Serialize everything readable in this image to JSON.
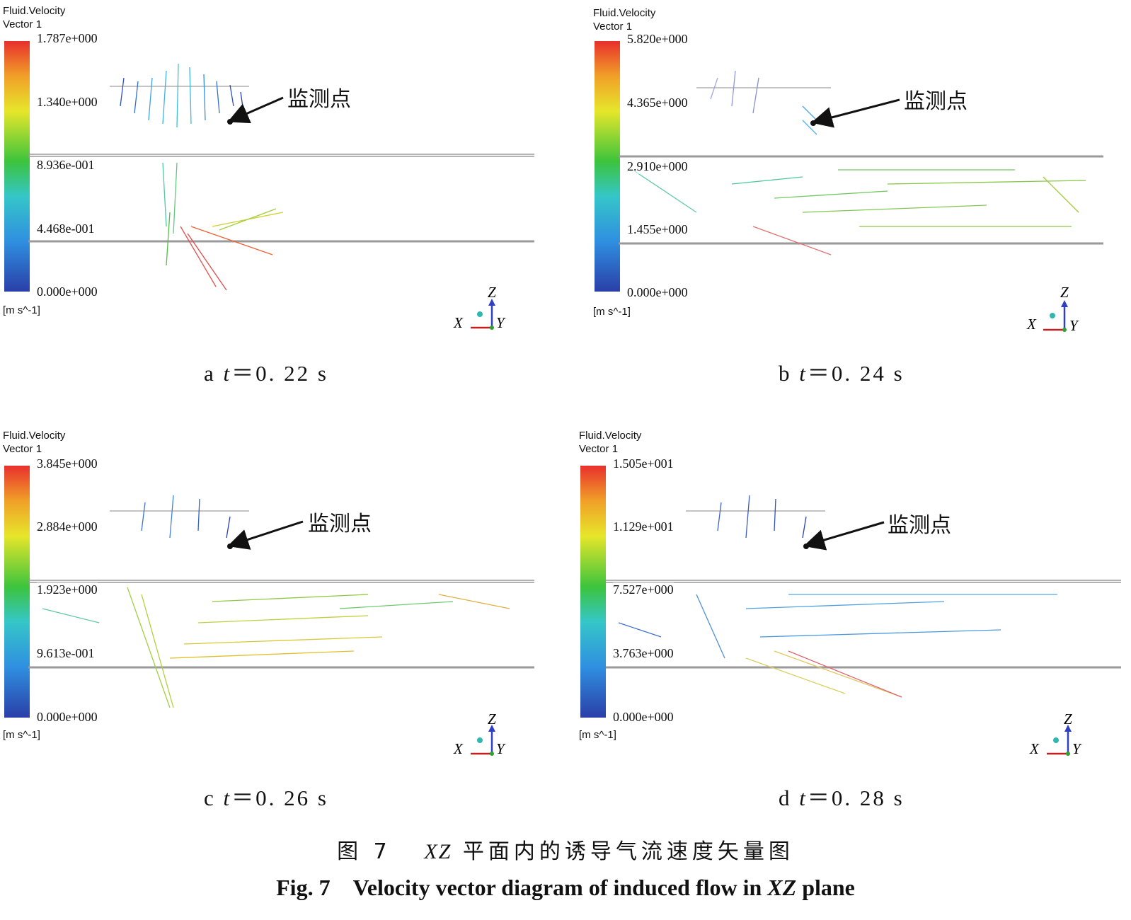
{
  "panels": [
    {
      "id": "a",
      "legend_title": "Fluid.Velocity",
      "legend_subtitle": "Vector 1",
      "ticks": [
        "1.787e+000",
        "1.340e+000",
        "8.936e-001",
        "4.468e-001",
        "0.000e+000"
      ],
      "unit": "[m s^-1]",
      "annotation": "监测点",
      "caption_letter": "a",
      "caption_var": "t",
      "caption_value": "＝0. 22  s",
      "axis": {
        "z": "Z",
        "x": "X",
        "y": "Y"
      }
    },
    {
      "id": "b",
      "legend_title": "Fluid.Velocity",
      "legend_subtitle": "Vector 1",
      "ticks": [
        "5.820e+000",
        "4.365e+000",
        "2.910e+000",
        "1.455e+000",
        "0.000e+000"
      ],
      "unit": "[m s^-1]",
      "annotation": "监测点",
      "caption_letter": "b",
      "caption_var": "t",
      "caption_value": "＝0. 24  s",
      "axis": {
        "z": "Z",
        "x": "X",
        "y": "Y"
      }
    },
    {
      "id": "c",
      "legend_title": "Fluid.Velocity",
      "legend_subtitle": "Vector 1",
      "ticks": [
        "3.845e+000",
        "2.884e+000",
        "1.923e+000",
        "9.613e-001",
        "0.000e+000"
      ],
      "unit": "[m s^-1]",
      "annotation": "监测点",
      "caption_letter": "c",
      "caption_var": "t",
      "caption_value": "＝0. 26  s",
      "axis": {
        "z": "Z",
        "x": "X",
        "y": "Y"
      }
    },
    {
      "id": "d",
      "legend_title": "Fluid.Velocity",
      "legend_subtitle": "Vector 1",
      "ticks": [
        "1.505e+001",
        "1.129e+001",
        "7.527e+000",
        "3.763e+000",
        "0.000e+000"
      ],
      "unit": "[m s^-1]",
      "annotation": "监测点",
      "caption_letter": "d",
      "caption_var": "t",
      "caption_value": "＝0. 28  s",
      "axis": {
        "z": "Z",
        "x": "X",
        "y": "Y"
      }
    }
  ],
  "figure_caption_cn_prefix": "图 7",
  "figure_caption_cn_var": "XZ",
  "figure_caption_cn_rest": "平面内的诱导气流速度矢量图",
  "figure_caption_en_prefix": "Fig. 7",
  "figure_caption_en_main": "Velocity vector diagram of induced flow in",
  "figure_caption_en_var": "XZ",
  "figure_caption_en_end": "plane",
  "colors": {
    "scale": [
      "#2a3fa8",
      "#2f8fe0",
      "#35c6c8",
      "#3cc43c",
      "#e6e62a",
      "#f0a028",
      "#e8302c"
    ],
    "wall": "#9a9a9a",
    "arrow": "#111111"
  }
}
